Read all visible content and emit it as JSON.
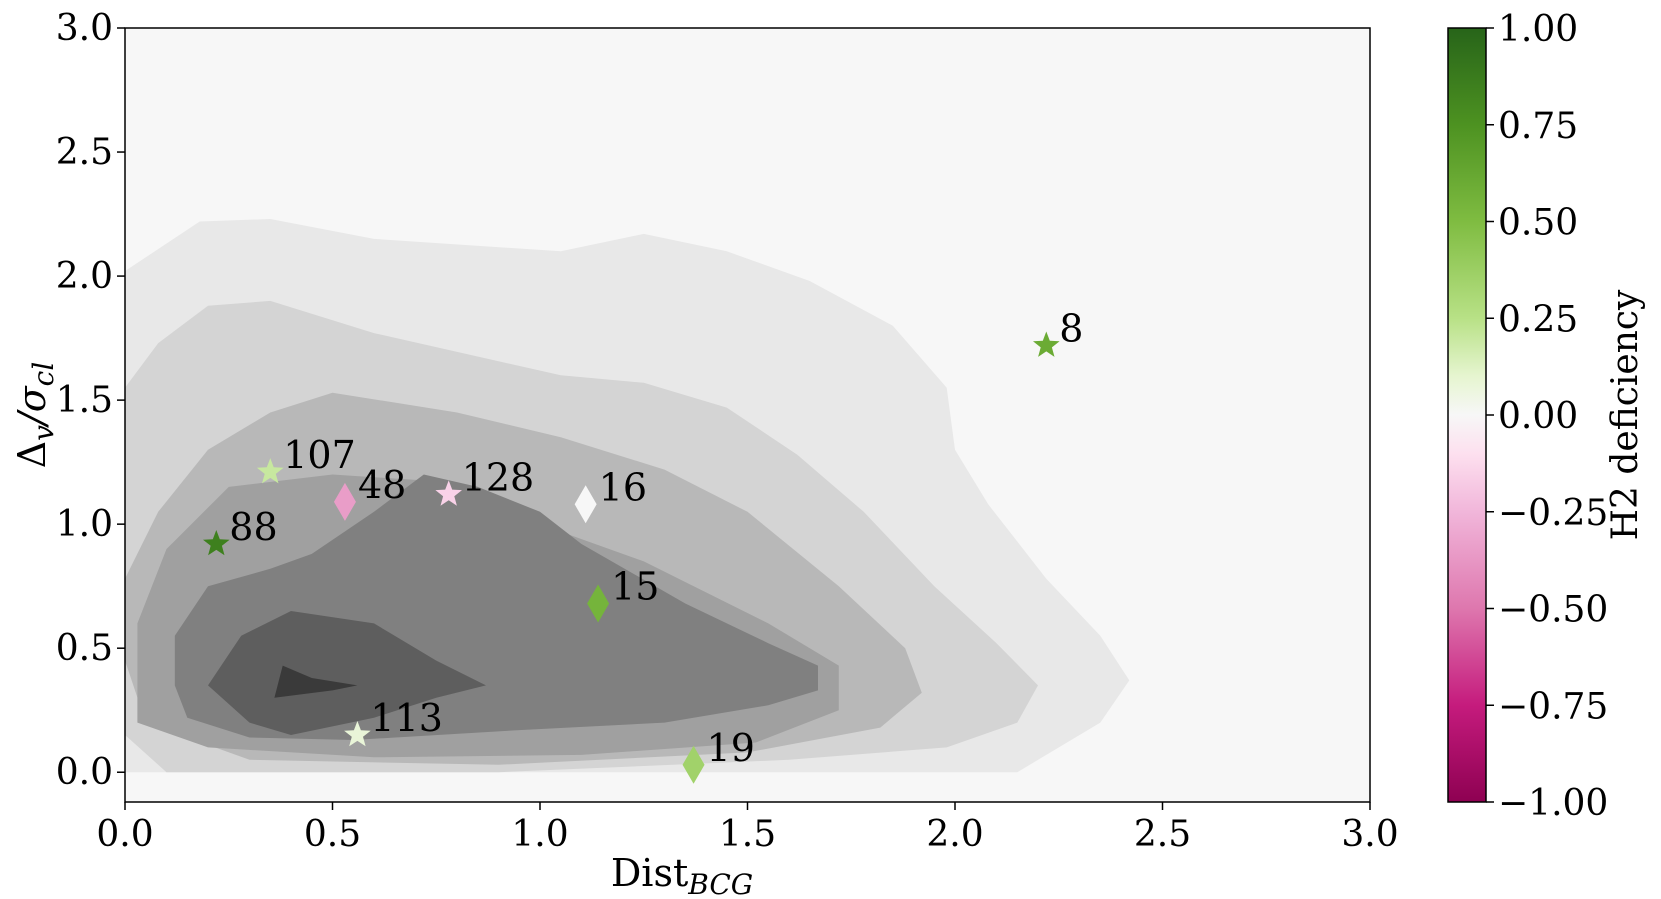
{
  "chart_data": {
    "type": "scatter",
    "xlabel": "Dist",
    "xlabel_sub": "BCG",
    "ylabel_main": "Δ",
    "ylabel_sub1": "v",
    "ylabel_slash": "/σ",
    "ylabel_sub2": "cl",
    "xlim": [
      0,
      3
    ],
    "ylim": [
      -0.12,
      3
    ],
    "x_ticks": [
      "0.0",
      "0.5",
      "1.0",
      "1.5",
      "2.0",
      "2.5",
      "3.0"
    ],
    "y_ticks": [
      "0.0",
      "0.5",
      "1.0",
      "1.5",
      "2.0",
      "2.5",
      "3.0"
    ],
    "colorbar": {
      "label": "H2 deficiency",
      "range": [
        -1,
        1
      ],
      "ticks": [
        "1.00",
        "0.75",
        "0.50",
        "0.25",
        "0.00",
        "−0.25",
        "−0.50",
        "−0.75",
        "−1.00"
      ],
      "tick_values": [
        1.0,
        0.75,
        0.5,
        0.25,
        0.0,
        -0.25,
        -0.5,
        -0.75,
        -1.0
      ],
      "colormap": "PiYG"
    },
    "contour_colors": [
      "#f7f7f7",
      "#e8e8e8",
      "#d4d4d4",
      "#b8b8b8",
      "#a0a0a0",
      "#808080",
      "#5e5e5e",
      "#3a3a3a"
    ],
    "points": [
      {
        "label": "107",
        "x": 0.35,
        "y": 1.21,
        "marker": "star",
        "value": 0.2
      },
      {
        "label": "88",
        "x": 0.22,
        "y": 0.92,
        "marker": "star",
        "value": 0.85
      },
      {
        "label": "48",
        "x": 0.53,
        "y": 1.09,
        "marker": "diamond",
        "value": -0.35
      },
      {
        "label": "128",
        "x": 0.78,
        "y": 1.12,
        "marker": "star",
        "value": -0.15
      },
      {
        "label": "16",
        "x": 1.11,
        "y": 1.08,
        "marker": "diamond",
        "value": 0.0
      },
      {
        "label": "15",
        "x": 1.14,
        "y": 0.68,
        "marker": "diamond",
        "value": 0.55
      },
      {
        "label": "113",
        "x": 0.56,
        "y": 0.15,
        "marker": "star",
        "value": 0.08
      },
      {
        "label": "19",
        "x": 1.37,
        "y": 0.03,
        "marker": "diamond",
        "value": 0.35
      },
      {
        "label": "8",
        "x": 2.22,
        "y": 1.72,
        "marker": "star",
        "value": 0.6
      }
    ]
  }
}
